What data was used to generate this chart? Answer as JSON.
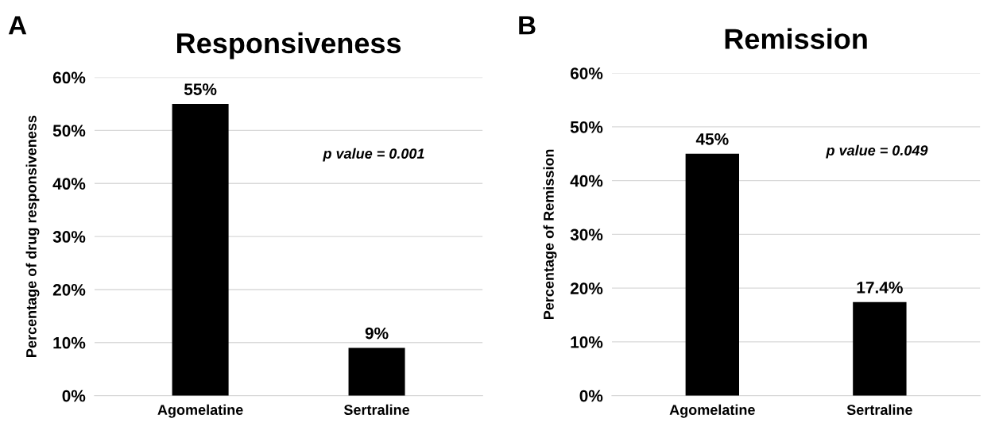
{
  "chart_data": [
    {
      "type": "bar",
      "title": "Responsiveness",
      "ylabel": "Percentage of drug responsiveness",
      "categories": [
        "Agomelatine",
        "Sertraline"
      ],
      "values": [
        55,
        9
      ],
      "value_labels": [
        "55%",
        "9%"
      ],
      "color": "#000000",
      "ylim": [
        0,
        60
      ],
      "yticks": [
        {
          "value": 0,
          "label": "0%"
        },
        {
          "value": 10,
          "label": "10%"
        },
        {
          "value": 20,
          "label": "20%"
        },
        {
          "value": 30,
          "label": "30%"
        },
        {
          "value": 40,
          "label": "40%"
        },
        {
          "value": 50,
          "label": "50%"
        },
        {
          "value": 60,
          "label": "60%"
        }
      ],
      "grid": "y",
      "annotations": [
        "A",
        "p value = 0.001"
      ]
    },
    {
      "type": "bar",
      "title": "Remission",
      "ylabel": "Percentage of Remission",
      "categories": [
        "Agomelatine",
        "Sertraline"
      ],
      "values": [
        45,
        17.4
      ],
      "value_labels": [
        "45%",
        "17.4%"
      ],
      "color": "#000000",
      "ylim": [
        0,
        60
      ],
      "yticks": [
        {
          "value": 0,
          "label": "0%"
        },
        {
          "value": 10,
          "label": "10%"
        },
        {
          "value": 20,
          "label": "20%"
        },
        {
          "value": 30,
          "label": "30%"
        },
        {
          "value": 40,
          "label": "40%"
        },
        {
          "value": 50,
          "label": "50%"
        },
        {
          "value": 60,
          "label": "60%"
        }
      ],
      "grid": "y",
      "annotations": [
        "B",
        "p value = 0.049"
      ]
    }
  ]
}
